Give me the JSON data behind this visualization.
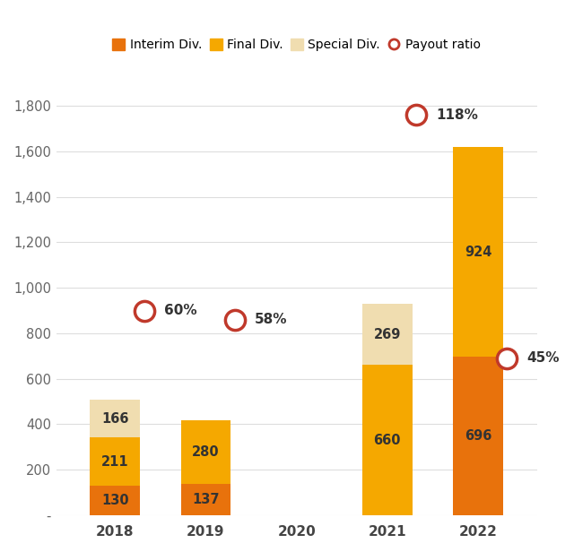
{
  "categories": [
    "2018",
    "2019",
    "2020",
    "2021",
    "2022"
  ],
  "interim_div": [
    130,
    137,
    0,
    0,
    696
  ],
  "final_div": [
    211,
    280,
    0,
    660,
    924
  ],
  "special_div": [
    166,
    0,
    0,
    269,
    0
  ],
  "payout_ratio_values": [
    900,
    860,
    null,
    1760,
    690
  ],
  "payout_ratio_labels": [
    "60%",
    "58%",
    null,
    "118%",
    "45%"
  ],
  "payout_x_offset": [
    0.32,
    0.32,
    null,
    0.32,
    0.32
  ],
  "interim_color": "#E8720C",
  "final_color": "#F5A800",
  "special_color": "#F0DDB0",
  "payout_color": "#C0392B",
  "bg_color": "#FFFFFF",
  "ylim": [
    0,
    1950
  ],
  "yticks": [
    0,
    200,
    400,
    600,
    800,
    1000,
    1200,
    1400,
    1600,
    1800
  ],
  "ytick_labels": [
    "-",
    "200",
    "400",
    "600",
    "800",
    "1,000",
    "1,200",
    "1,400",
    "1,600",
    "1,800"
  ],
  "bar_width": 0.55,
  "legend_labels": [
    "Interim Div.",
    "Final Div.",
    "Special Div.",
    "Payout ratio"
  ]
}
